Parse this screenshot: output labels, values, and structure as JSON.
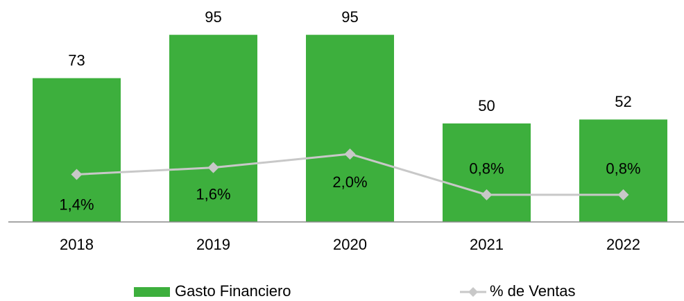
{
  "chart_data": {
    "type": "bar",
    "categories": [
      "2018",
      "2019",
      "2020",
      "2021",
      "2022"
    ],
    "series": [
      {
        "name": "Gasto Financiero",
        "type": "bar",
        "color": "#3daf3d",
        "values": [
          73,
          95,
          95,
          50,
          52
        ]
      },
      {
        "name": "% de Ventas",
        "type": "line",
        "axis": "y2",
        "color": "#c8c8c8",
        "values": [
          1.4,
          1.6,
          2.0,
          0.8,
          0.8
        ],
        "value_labels": [
          "1,4%",
          "1,6%",
          "2,0%",
          "0,8%",
          "0,8%"
        ]
      }
    ],
    "ylim": [
      0,
      100
    ],
    "y2lim": [
      0,
      5.8
    ],
    "grid": false,
    "legend": "bottom"
  }
}
